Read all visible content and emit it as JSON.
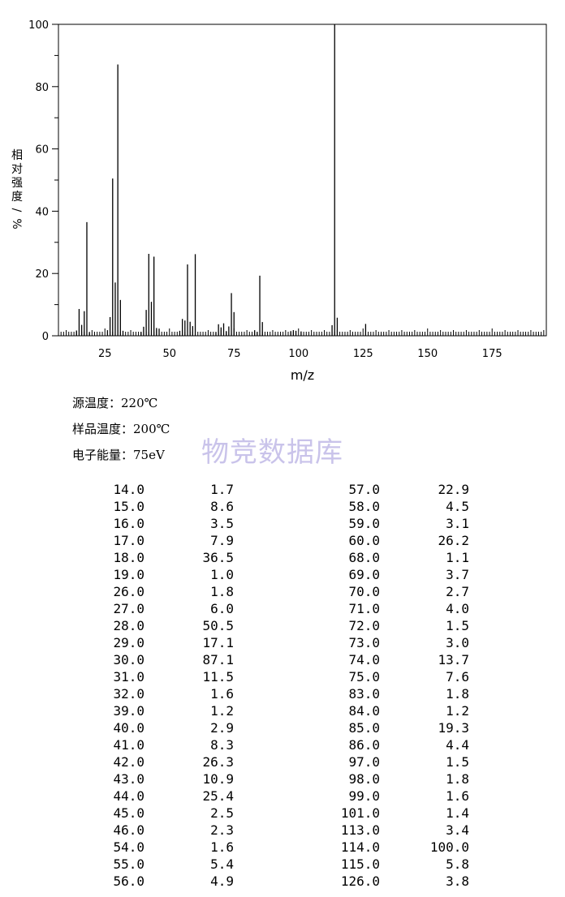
{
  "chart_data": {
    "type": "bar",
    "xlabel": "m/z",
    "ylabel": "相对强度/%",
    "xlim": [
      7,
      196
    ],
    "ylim": [
      0,
      100
    ],
    "xticks": [
      25,
      50,
      75,
      100,
      125,
      150,
      175
    ],
    "yticks": [
      0,
      20,
      40,
      60,
      80,
      100
    ],
    "grid": false,
    "x": [
      14,
      15,
      16,
      17,
      18,
      19,
      26,
      27,
      28,
      29,
      30,
      31,
      32,
      39,
      40,
      41,
      42,
      43,
      44,
      45,
      46,
      54,
      55,
      56,
      57,
      58,
      59,
      60,
      68,
      69,
      70,
      71,
      72,
      73,
      74,
      75,
      83,
      84,
      85,
      86,
      97,
      98,
      99,
      101,
      113,
      114,
      115,
      126
    ],
    "values": [
      1.7,
      8.6,
      3.5,
      7.9,
      36.5,
      1.0,
      1.8,
      6.0,
      50.5,
      17.1,
      87.1,
      11.5,
      1.6,
      1.2,
      2.9,
      8.3,
      26.3,
      10.9,
      25.4,
      2.5,
      2.3,
      1.6,
      5.4,
      4.9,
      22.9,
      4.5,
      3.1,
      26.2,
      1.1,
      3.7,
      2.7,
      4.0,
      1.5,
      3.0,
      13.7,
      7.6,
      1.8,
      1.2,
      19.3,
      4.4,
      1.5,
      1.8,
      1.6,
      1.4,
      3.4,
      100.0,
      5.8,
      3.8
    ]
  },
  "conditions": [
    "源温度：220℃",
    "样品温度：200℃",
    "电子能量：75eV"
  ],
  "watermark": "物竞数据库",
  "peak_table": {
    "left": [
      [
        "14.0",
        "1.7"
      ],
      [
        "15.0",
        "8.6"
      ],
      [
        "16.0",
        "3.5"
      ],
      [
        "17.0",
        "7.9"
      ],
      [
        "18.0",
        "36.5"
      ],
      [
        "19.0",
        "1.0"
      ],
      [
        "26.0",
        "1.8"
      ],
      [
        "27.0",
        "6.0"
      ],
      [
        "28.0",
        "50.5"
      ],
      [
        "29.0",
        "17.1"
      ],
      [
        "30.0",
        "87.1"
      ],
      [
        "31.0",
        "11.5"
      ],
      [
        "32.0",
        "1.6"
      ],
      [
        "39.0",
        "1.2"
      ],
      [
        "40.0",
        "2.9"
      ],
      [
        "41.0",
        "8.3"
      ],
      [
        "42.0",
        "26.3"
      ],
      [
        "43.0",
        "10.9"
      ],
      [
        "44.0",
        "25.4"
      ],
      [
        "45.0",
        "2.5"
      ],
      [
        "46.0",
        "2.3"
      ],
      [
        "54.0",
        "1.6"
      ],
      [
        "55.0",
        "5.4"
      ],
      [
        "56.0",
        "4.9"
      ]
    ],
    "right": [
      [
        "57.0",
        "22.9"
      ],
      [
        "58.0",
        "4.5"
      ],
      [
        "59.0",
        "3.1"
      ],
      [
        "60.0",
        "26.2"
      ],
      [
        "68.0",
        "1.1"
      ],
      [
        "69.0",
        "3.7"
      ],
      [
        "70.0",
        "2.7"
      ],
      [
        "71.0",
        "4.0"
      ],
      [
        "72.0",
        "1.5"
      ],
      [
        "73.0",
        "3.0"
      ],
      [
        "74.0",
        "13.7"
      ],
      [
        "75.0",
        "7.6"
      ],
      [
        "83.0",
        "1.8"
      ],
      [
        "84.0",
        "1.2"
      ],
      [
        "85.0",
        "19.3"
      ],
      [
        "86.0",
        "4.4"
      ],
      [
        "97.0",
        "1.5"
      ],
      [
        "98.0",
        "1.8"
      ],
      [
        "99.0",
        "1.6"
      ],
      [
        "101.0",
        "1.4"
      ],
      [
        "113.0",
        "3.4"
      ],
      [
        "114.0",
        "100.0"
      ],
      [
        "115.0",
        "5.8"
      ],
      [
        "126.0",
        "3.8"
      ]
    ]
  }
}
